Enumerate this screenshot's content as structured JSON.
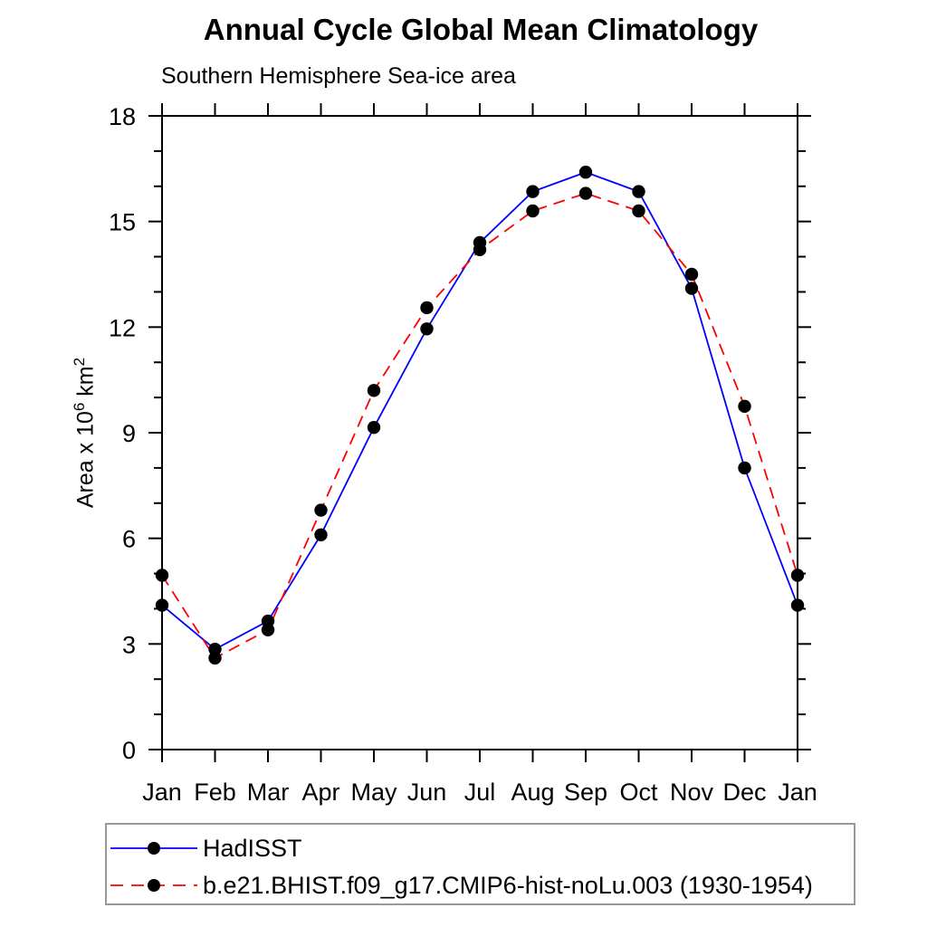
{
  "page": {
    "title": "Annual Cycle Global Mean Climatology",
    "subtitle": "Southern Hemisphere Sea-ice area"
  },
  "yaxis": {
    "title_main": "Area x 10",
    "title_sup1": "6",
    "title_mid": " km",
    "title_sup2": "2"
  },
  "colors": {
    "hadisst_line": "#0000ff",
    "model_line": "#ff0000",
    "marker": "#000000",
    "axis": "#000000",
    "legend_border": "#999999"
  },
  "chart_data": {
    "type": "line",
    "title": "Annual Cycle Global Mean Climatology",
    "subtitle": "Southern Hemisphere Sea-ice area",
    "xlabel": "",
    "ylabel": "Area x 10^6 km^2",
    "categories": [
      "Jan",
      "Feb",
      "Mar",
      "Apr",
      "May",
      "Jun",
      "Jul",
      "Aug",
      "Sep",
      "Oct",
      "Nov",
      "Dec",
      "Jan"
    ],
    "ylim": [
      0,
      18
    ],
    "ytick_major": [
      0,
      3,
      6,
      9,
      12,
      15,
      18
    ],
    "ytick_minor_step": 1,
    "grid": false,
    "legend_position": "bottom-left-box",
    "marker": "filled-circle-black",
    "series": [
      {
        "name": "HadISST",
        "color": "#0000ff",
        "style": "solid",
        "values": [
          4.1,
          2.85,
          3.65,
          6.1,
          9.15,
          11.95,
          14.4,
          15.85,
          16.4,
          15.85,
          13.1,
          8.0,
          4.1
        ]
      },
      {
        "name": "b.e21.BHIST.f09_g17.CMIP6-hist-noLu.003 (1930-1954)",
        "color": "#ff0000",
        "style": "dashed",
        "values": [
          4.95,
          2.6,
          3.4,
          6.8,
          10.2,
          12.55,
          14.2,
          15.3,
          15.8,
          15.3,
          13.5,
          9.75,
          4.95
        ]
      }
    ]
  }
}
